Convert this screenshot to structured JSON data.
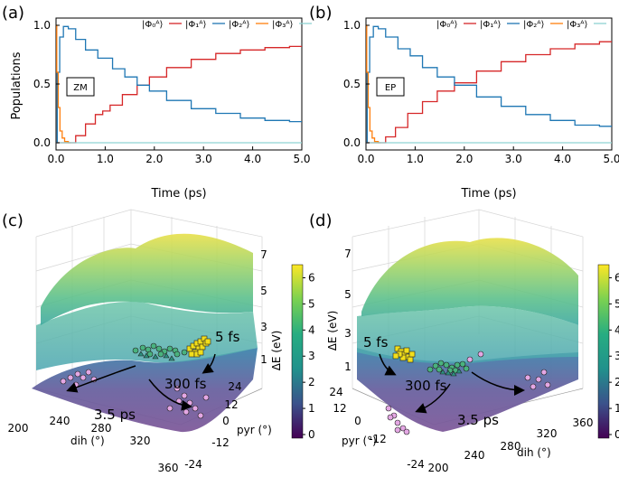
{
  "chart_data": [
    {
      "panel": "(a)",
      "type": "line",
      "xlabel": "Time (ps)",
      "ylabel": "Populations",
      "xlim": [
        0,
        5
      ],
      "ylim": [
        0,
        1
      ],
      "xticks": [
        "0.0",
        "1.0",
        "2.0",
        "3.0",
        "4.0",
        "5.0"
      ],
      "yticks": [
        "0.0",
        "0.5",
        "1.0"
      ],
      "inset_label": "ZM",
      "legend": [
        "|Φ₀ᴬ⟩",
        "|Φ₁ᴬ⟩",
        "|Φ₂ᴬ⟩",
        "|Φ₃ᴬ⟩"
      ],
      "series": [
        {
          "name": "S0",
          "color": "#d62728",
          "x": [
            0,
            0.3,
            0.5,
            0.7,
            0.9,
            1.0,
            1.2,
            1.5,
            1.8,
            2.0,
            2.5,
            3.0,
            3.5,
            4.0,
            4.5,
            5.0
          ],
          "y": [
            0,
            0,
            0.06,
            0.16,
            0.24,
            0.27,
            0.32,
            0.41,
            0.49,
            0.56,
            0.64,
            0.71,
            0.76,
            0.79,
            0.81,
            0.82
          ]
        },
        {
          "name": "S1",
          "color": "#1f77b4",
          "x": [
            0,
            0.05,
            0.1,
            0.2,
            0.3,
            0.5,
            0.7,
            1.0,
            1.3,
            1.5,
            1.8,
            2.0,
            2.5,
            3.0,
            3.5,
            4.0,
            4.5,
            5.0
          ],
          "y": [
            0,
            0.6,
            0.9,
            0.99,
            0.97,
            0.88,
            0.79,
            0.72,
            0.63,
            0.56,
            0.49,
            0.44,
            0.36,
            0.29,
            0.25,
            0.21,
            0.19,
            0.18
          ]
        },
        {
          "name": "S2",
          "color": "#ff7f0e",
          "x": [
            0,
            0.03,
            0.06,
            0.1,
            0.15,
            0.2,
            0.3
          ],
          "y": [
            1.0,
            0.6,
            0.3,
            0.1,
            0.04,
            0.01,
            0
          ]
        },
        {
          "name": "S3",
          "color": "#8fd3d3",
          "x": [
            0,
            5.0
          ],
          "y": [
            0,
            0
          ]
        }
      ]
    },
    {
      "panel": "(b)",
      "type": "line",
      "xlabel": "Time (ps)",
      "ylabel": "",
      "xlim": [
        0,
        5
      ],
      "ylim": [
        0,
        1
      ],
      "xticks": [
        "0.0",
        "1.0",
        "2.0",
        "3.0",
        "4.0",
        "5.0"
      ],
      "yticks": [
        "0.0",
        "0.5",
        "1.0"
      ],
      "inset_label": "EP",
      "legend": [
        "|Φ₀ᴬ⟩",
        "|Φ₁ᴬ⟩",
        "|Φ₂ᴬ⟩",
        "|Φ₃ᴬ⟩"
      ],
      "series": [
        {
          "name": "S0",
          "color": "#d62728",
          "x": [
            0,
            0.3,
            0.5,
            0.7,
            1.0,
            1.3,
            1.6,
            2.0,
            2.5,
            3.0,
            3.5,
            4.0,
            4.5,
            5.0
          ],
          "y": [
            0,
            0,
            0.05,
            0.13,
            0.25,
            0.35,
            0.44,
            0.51,
            0.61,
            0.69,
            0.75,
            0.8,
            0.84,
            0.86
          ]
        },
        {
          "name": "S1",
          "color": "#1f77b4",
          "x": [
            0,
            0.05,
            0.1,
            0.2,
            0.3,
            0.5,
            0.8,
            1.0,
            1.3,
            1.6,
            2.0,
            2.5,
            3.0,
            3.5,
            4.0,
            4.5,
            5.0
          ],
          "y": [
            0,
            0.6,
            0.9,
            0.99,
            0.97,
            0.9,
            0.8,
            0.74,
            0.64,
            0.56,
            0.49,
            0.39,
            0.31,
            0.24,
            0.19,
            0.15,
            0.14
          ]
        },
        {
          "name": "S2",
          "color": "#ff7f0e",
          "x": [
            0,
            0.03,
            0.06,
            0.1,
            0.15,
            0.2,
            0.3
          ],
          "y": [
            1.0,
            0.6,
            0.3,
            0.1,
            0.04,
            0.01,
            0
          ]
        },
        {
          "name": "S3",
          "color": "#8fd3d3",
          "x": [
            0,
            5.0
          ],
          "y": [
            0,
            0
          ]
        }
      ]
    },
    {
      "panel": "(c)",
      "type": "surface3d",
      "xlabel": "dih (°)",
      "ylabel": "pyr (°)",
      "zlabel": "ΔE (eV)",
      "dih_ticks": [
        "200",
        "240",
        "280",
        "320",
        "360"
      ],
      "pyr_ticks": [
        "24",
        "12",
        "0",
        "-12",
        "-24"
      ],
      "energy_ticks": [
        "1",
        "3",
        "5",
        "7"
      ],
      "colorbar_ticks": [
        "0",
        "1",
        "2",
        "3",
        "4",
        "5",
        "6"
      ],
      "annotations": [
        "5 fs",
        "300 fs",
        "3.5 ps"
      ]
    },
    {
      "panel": "(d)",
      "type": "surface3d",
      "xlabel": "dih (°)",
      "ylabel": "pyr (°)",
      "zlabel": "ΔE (eV)",
      "dih_ticks": [
        "200",
        "240",
        "280",
        "320",
        "360"
      ],
      "pyr_ticks": [
        "24",
        "12",
        "0",
        "-12",
        "-24"
      ],
      "energy_ticks": [
        "1",
        "3",
        "5",
        "7"
      ],
      "colorbar_ticks": [
        "0",
        "1",
        "2",
        "3",
        "4",
        "5",
        "6"
      ],
      "annotations": [
        "5 fs",
        "300 fs",
        "3.5 ps"
      ]
    }
  ]
}
